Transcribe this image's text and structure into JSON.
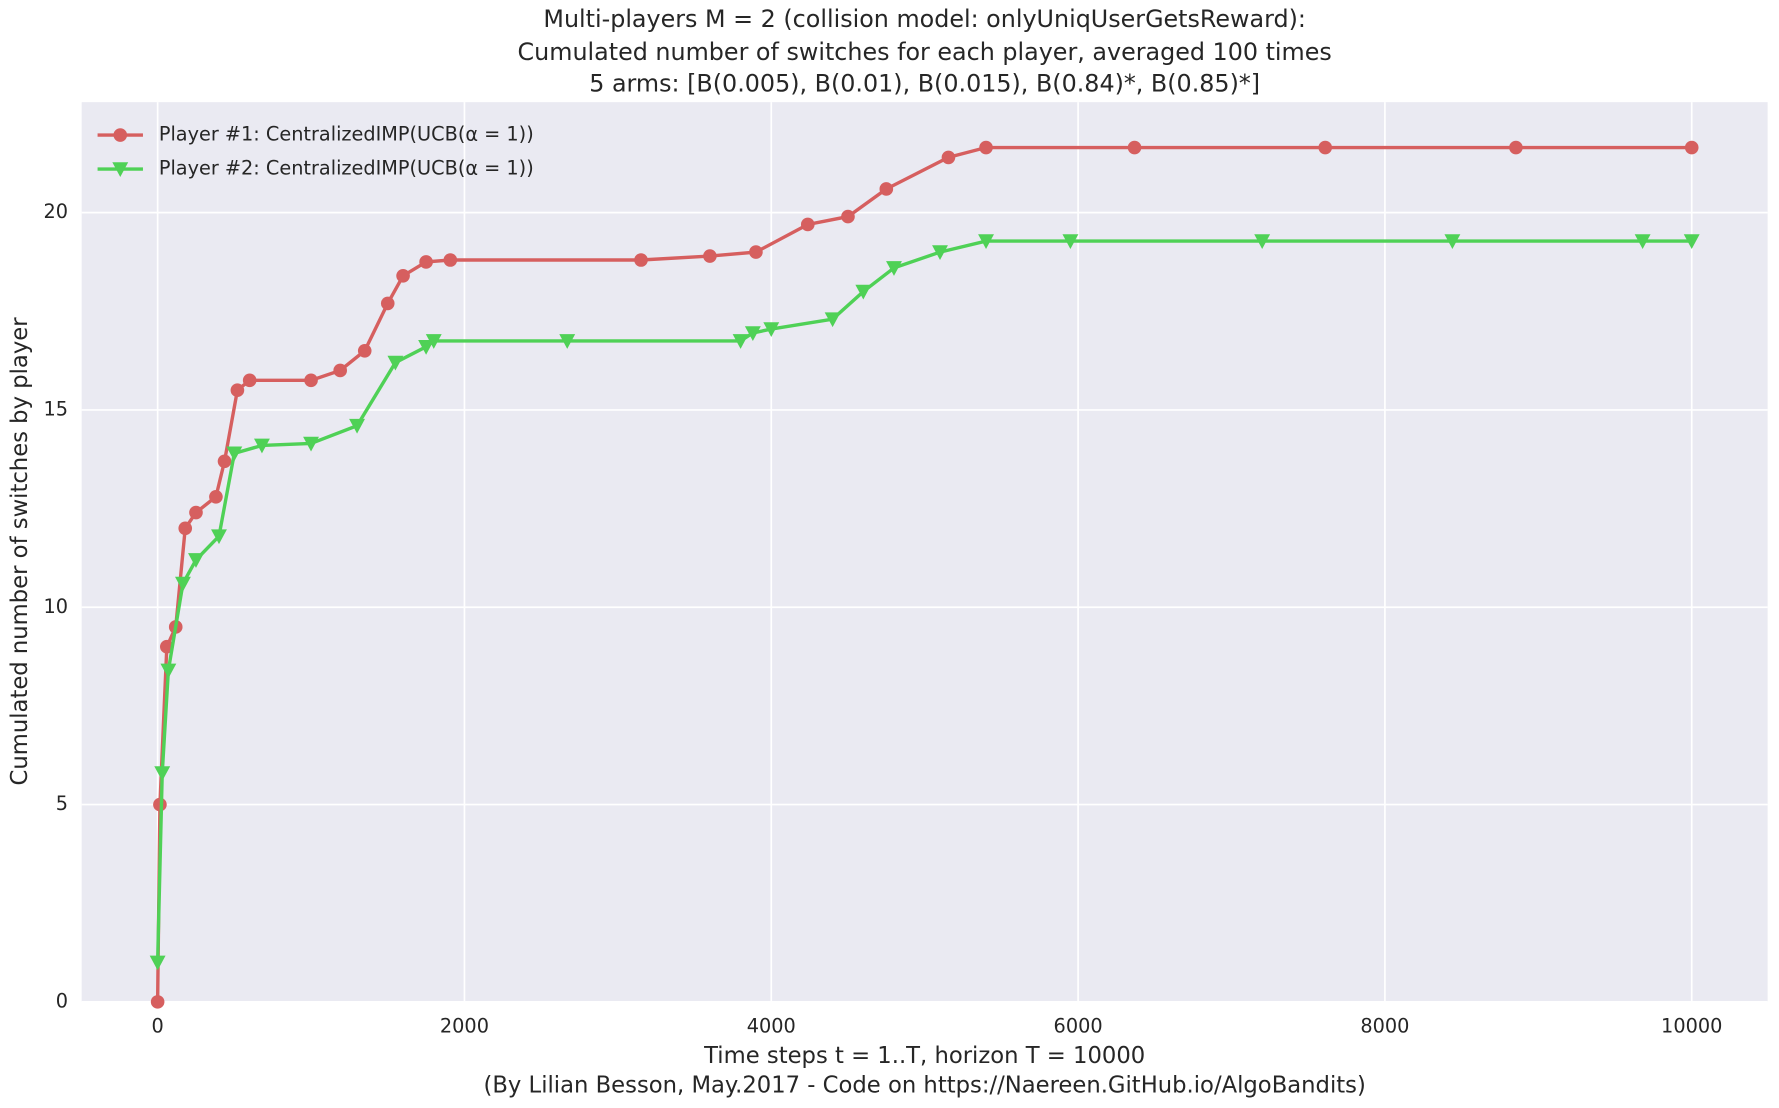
{
  "chart_data": {
    "type": "line",
    "title": [
      "Multi-players M = 2 (collision model: onlyUniqUserGetsReward):",
      "Cumulated number of switches for each player, averaged 100 times",
      "5 arms: [B(0.005), B(0.01), B(0.015), B(0.84)*, B(0.85)*]"
    ],
    "xlabel": "Time steps t = 1..T, horizon T = 10000",
    "caption": "(By Lilian Besson, May.2017 - Code on https://Naereen.GitHub.io/AlgoBandits)",
    "ylabel": "Cumulated number of switches by player",
    "xlim": [
      -495,
      10495
    ],
    "ylim": [
      0,
      22.8
    ],
    "xticks": [
      0,
      2000,
      4000,
      6000,
      8000,
      10000
    ],
    "yticks": [
      0,
      5,
      10,
      15,
      20
    ],
    "grid": true,
    "legend": "upper left",
    "series": [
      {
        "name": "Player #1: CentralizedIMP(UCB(α = 1))",
        "color": "#d65f5f",
        "marker": "o",
        "x": [
          0,
          15,
          60,
          118,
          180,
          250,
          380,
          436,
          520,
          600,
          1000,
          1190,
          1350,
          1500,
          1600,
          1750,
          1908,
          3151,
          3600,
          3900,
          4238,
          4500,
          4750,
          5155,
          5400,
          6368,
          7611,
          8854,
          10000
        ],
        "values": [
          0,
          5.0,
          9.0,
          9.5,
          12.0,
          12.4,
          12.8,
          13.7,
          15.5,
          15.75,
          15.75,
          16.0,
          16.5,
          17.7,
          18.4,
          18.75,
          18.8,
          18.8,
          18.9,
          19.0,
          19.7,
          19.9,
          20.6,
          21.4,
          21.65,
          21.65,
          21.65,
          21.65,
          21.65
        ]
      },
      {
        "name": "Player #2: CentralizedIMP(UCB(α = 1))",
        "color": "#4fd156",
        "marker": "v",
        "x": [
          0,
          30,
          70,
          165,
          250,
          400,
          500,
          680,
          1000,
          1300,
          1550,
          1750,
          1800,
          2670,
          3800,
          3880,
          4000,
          4400,
          4600,
          4800,
          5100,
          5400,
          5950,
          7200,
          8440,
          9680,
          10000
        ],
        "values": [
          1.0,
          5.8,
          8.4,
          10.6,
          11.2,
          11.8,
          13.9,
          14.1,
          14.15,
          14.6,
          16.2,
          16.6,
          16.75,
          16.75,
          16.75,
          16.95,
          17.05,
          17.3,
          18.0,
          18.6,
          19.0,
          19.28,
          19.28,
          19.28,
          19.28,
          19.28,
          19.28
        ]
      }
    ]
  }
}
